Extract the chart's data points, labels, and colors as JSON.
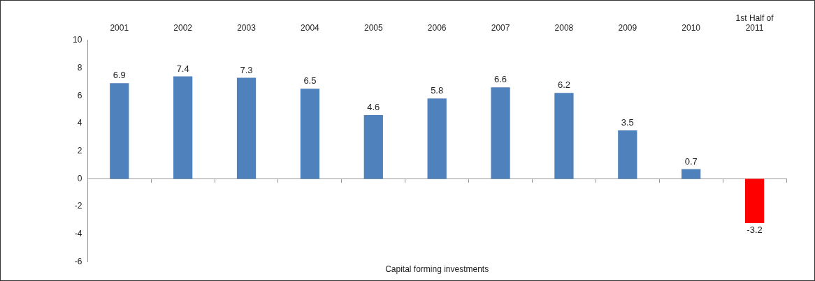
{
  "chart_data": {
    "type": "bar",
    "xlabel": "Capital forming investments",
    "categories": [
      "2001",
      "2002",
      "2003",
      "2004",
      "2005",
      "2006",
      "2007",
      "2008",
      "2009",
      "2010",
      "1st Half of 2011"
    ],
    "values": [
      6.9,
      7.4,
      7.3,
      6.5,
      4.6,
      5.8,
      6.6,
      6.2,
      3.5,
      0.7,
      -3.2
    ],
    "colors": [
      "#4f81bd",
      "#4f81bd",
      "#4f81bd",
      "#4f81bd",
      "#4f81bd",
      "#4f81bd",
      "#4f81bd",
      "#4f81bd",
      "#4f81bd",
      "#4f81bd",
      "#ff0000"
    ],
    "ylim": [
      -6,
      10
    ],
    "yticks": [
      -6,
      -4,
      -2,
      0,
      2,
      4,
      6,
      8,
      10
    ],
    "legend": false,
    "data_labels": true
  }
}
